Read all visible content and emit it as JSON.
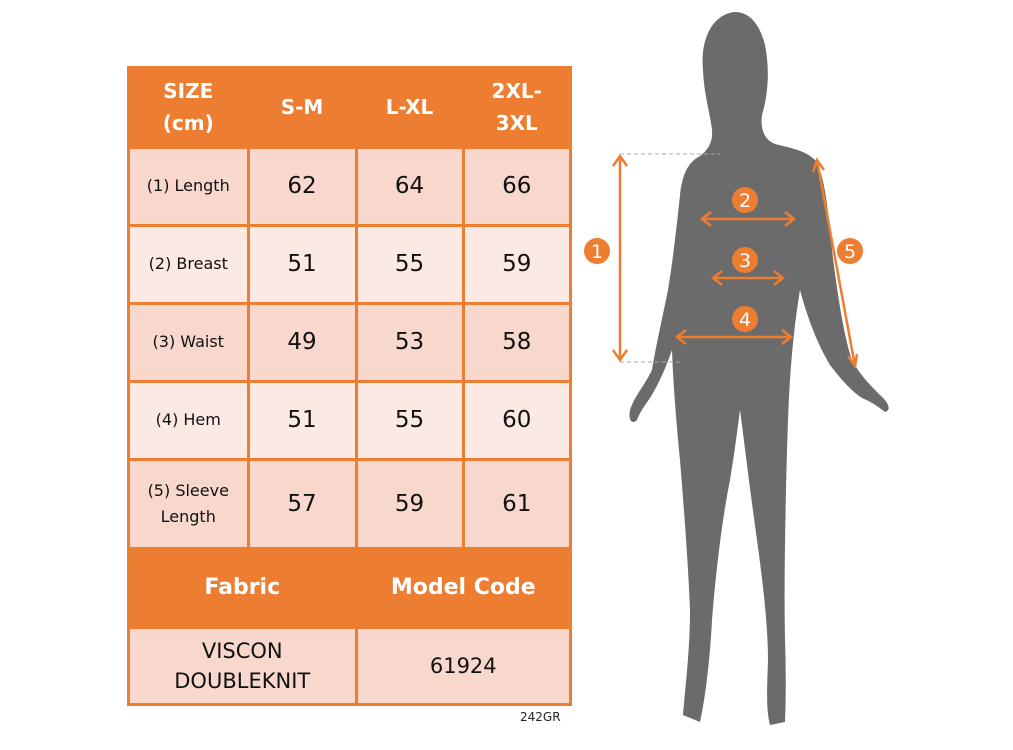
{
  "table": {
    "header": [
      "SIZE (cm)",
      "S-M",
      "L-XL",
      "2XL-3XL"
    ],
    "header_lines": [
      [
        "SIZE",
        "(cm)"
      ],
      [
        "S-M"
      ],
      [
        "L-XL"
      ],
      [
        "2XL-",
        "3XL"
      ]
    ],
    "rows": [
      {
        "label": "(1) Length",
        "values": [
          "62",
          "64",
          "66"
        ]
      },
      {
        "label": "(2) Breast",
        "values": [
          "51",
          "55",
          "59"
        ]
      },
      {
        "label": "(3) Waist",
        "values": [
          "49",
          "53",
          "58"
        ]
      },
      {
        "label": "(4) Hem",
        "values": [
          "51",
          "55",
          "60"
        ]
      },
      {
        "label_lines": [
          "(5) Sleeve",
          "Length"
        ],
        "values": [
          "57",
          "59",
          "61"
        ]
      }
    ],
    "footer_header": [
      "Fabric",
      "Model Code"
    ],
    "fabric_lines": [
      "VISCON",
      "DOUBLEKNIT"
    ],
    "model_code": "61924"
  },
  "product_code": "242GR",
  "figure": {
    "markers": [
      "1",
      "2",
      "3",
      "4",
      "5"
    ]
  },
  "colors": {
    "accent": "#ed7d31",
    "cell_dark": "#f8d8cc",
    "cell_light": "#fbeae4",
    "silhouette": "#6b6b6b"
  }
}
